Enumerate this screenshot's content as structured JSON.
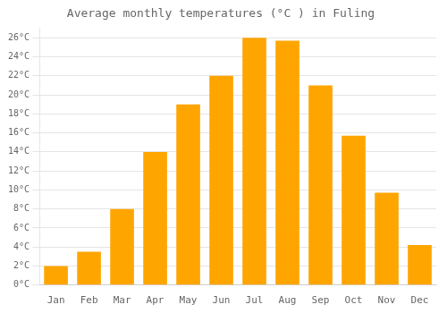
{
  "chart_data": {
    "type": "bar",
    "title": "Average monthly temperatures (°C ) in Fuling",
    "categories": [
      "Jan",
      "Feb",
      "Mar",
      "Apr",
      "May",
      "Jun",
      "Jul",
      "Aug",
      "Sep",
      "Oct",
      "Nov",
      "Dec"
    ],
    "values": [
      2,
      3.5,
      8,
      14,
      19,
      22,
      26,
      25.7,
      21,
      15.7,
      9.7,
      4.2
    ],
    "color": "#FFA500",
    "ylim": [
      0,
      27
    ],
    "yticks": [
      {
        "value": 0,
        "label": "0°C"
      },
      {
        "value": 2,
        "label": "2°C"
      },
      {
        "value": 4,
        "label": "4°C"
      },
      {
        "value": 6,
        "label": "6°C"
      },
      {
        "value": 8,
        "label": "8°C"
      },
      {
        "value": 10,
        "label": "10°C"
      },
      {
        "value": 12,
        "label": "12°C"
      },
      {
        "value": 14,
        "label": "14°C"
      },
      {
        "value": 16,
        "label": "16°C"
      },
      {
        "value": 18,
        "label": "18°C"
      },
      {
        "value": 20,
        "label": "20°C"
      },
      {
        "value": 22,
        "label": "22°C"
      },
      {
        "value": 24,
        "label": "24°C"
      },
      {
        "value": 26,
        "label": "26°C"
      }
    ],
    "grid": true
  }
}
